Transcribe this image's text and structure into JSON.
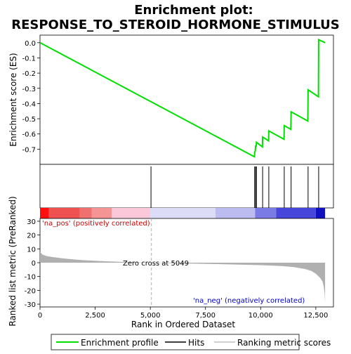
{
  "chart_data": {
    "type": "line",
    "title_line1": "Enrichment plot:",
    "title_line2": "RESPONSE_TO_STEROID_HORMONE_STIMULUS",
    "top_panel": {
      "ylabel": "Enrichment score (ES)",
      "ylim": [
        -0.8,
        0.05
      ],
      "yticks": [
        0.0,
        -0.1,
        -0.2,
        -0.3,
        -0.4,
        -0.5,
        -0.6,
        -0.7
      ],
      "ytick_labels": [
        "0.0",
        "-0.1",
        "-0.2",
        "-0.3",
        "-0.4",
        "-0.5",
        "-0.6",
        "-0.7"
      ],
      "series": [
        {
          "name": "Enrichment profile",
          "color": "#00e000",
          "x": [
            0,
            9720,
            9730,
            9760,
            9770,
            9800,
            9810,
            10080,
            10090,
            10360,
            10370,
            11060,
            11070,
            11370,
            11380,
            12140,
            12150,
            12620,
            12630,
            12920
          ],
          "y": [
            0.0,
            -0.75,
            -0.72,
            -0.71,
            -0.68,
            -0.68,
            -0.655,
            -0.685,
            -0.62,
            -0.645,
            -0.58,
            -0.635,
            -0.545,
            -0.57,
            -0.455,
            -0.515,
            -0.31,
            -0.355,
            0.02,
            0.0
          ]
        }
      ]
    },
    "hits": {
      "name": "Hits",
      "positions": [
        5030,
        9730,
        9770,
        9810,
        10090,
        10370,
        11070,
        11380,
        12150,
        12630
      ]
    },
    "bottom_panel": {
      "ylabel": "Ranked list metric (PreRanked)",
      "xlabel": "Rank in Ordered Dataset",
      "ylim": [
        -32,
        32
      ],
      "yticks": [
        30,
        20,
        10,
        0,
        -10,
        -20,
        -30
      ],
      "ytick_labels": [
        "30",
        "20",
        "10",
        "0",
        "-10",
        "-20",
        "-30"
      ],
      "xlim": [
        0,
        13300
      ],
      "xticks": [
        0,
        2500,
        5000,
        7500,
        10000,
        12500
      ],
      "xtick_labels": [
        "0",
        "2,500",
        "5,000",
        "7,500",
        "10,000",
        "12,500"
      ],
      "metric_curve": {
        "x": [
          0,
          100,
          300,
          600,
          1000,
          1500,
          2000,
          3000,
          4000,
          5049,
          6000,
          7000,
          8000,
          9000,
          10000,
          11000,
          11500,
          12000,
          12300,
          12500,
          12700,
          12800,
          12850,
          12900,
          12920
        ],
        "y": [
          8,
          6,
          4.8,
          4.0,
          3.2,
          2.4,
          1.8,
          1.0,
          0.4,
          0,
          -0.4,
          -0.7,
          -1.0,
          -1.4,
          -1.8,
          -2.5,
          -3.2,
          -4.5,
          -6.0,
          -8.0,
          -11.0,
          -13.5,
          -16.5,
          -22.0,
          -29.0
        ]
      },
      "zero_cross_label": "Zero cross at 5049",
      "zero_cross_x": 5049,
      "pos_label": "'na_pos' (positively correlated)",
      "neg_label": "'na_neg' (negatively correlated)",
      "pos_color": "#cc0000",
      "neg_color": "#0000cc",
      "metric_color": "#b0b0b0"
    },
    "color_bar": {
      "segments": [
        {
          "from": 0,
          "to": 400,
          "color": "#ff1010"
        },
        {
          "from": 400,
          "to": 1800,
          "color": "#ef5050"
        },
        {
          "from": 1800,
          "to": 2350,
          "color": "#f07070"
        },
        {
          "from": 2350,
          "to": 3250,
          "color": "#f49494"
        },
        {
          "from": 3250,
          "to": 5000,
          "color": "#fbc8da"
        },
        {
          "from": 5000,
          "to": 7950,
          "color": "#dcdcf6"
        },
        {
          "from": 7950,
          "to": 9750,
          "color": "#bcbcf0"
        },
        {
          "from": 9750,
          "to": 10700,
          "color": "#7b7be6"
        },
        {
          "from": 10700,
          "to": 12500,
          "color": "#4646da"
        },
        {
          "from": 12500,
          "to": 12920,
          "color": "#1010c0"
        }
      ]
    },
    "legend": {
      "position": "bottom",
      "items": [
        {
          "label": "Enrichment profile",
          "color": "#00e000"
        },
        {
          "label": "Hits",
          "color": "#000000"
        },
        {
          "label": "Ranking metric scores",
          "color": "#c0c0c0"
        }
      ]
    }
  }
}
